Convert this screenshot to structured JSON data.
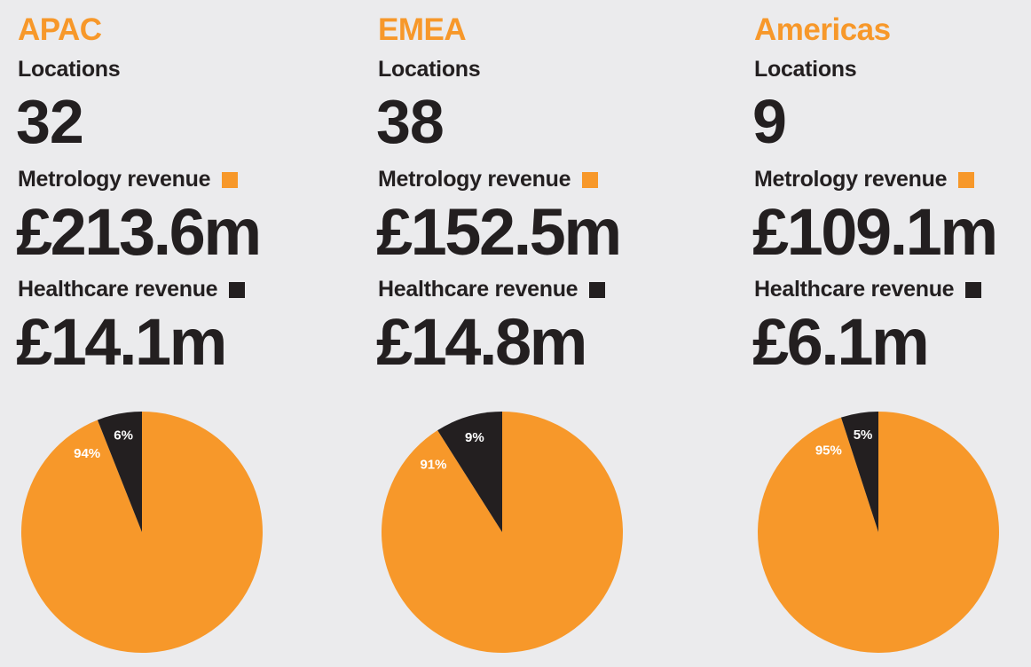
{
  "colors": {
    "metrology": "#f7982a",
    "healthcare": "#231f20",
    "background": "#ebebed"
  },
  "labels": {
    "locations": "Locations",
    "metrology_revenue": "Metrology revenue",
    "healthcare_revenue": "Healthcare revenue"
  },
  "regions": [
    {
      "name": "APAC",
      "locations": "32",
      "metrology_revenue": "£213.6m",
      "healthcare_revenue": "£14.1m"
    },
    {
      "name": "EMEA",
      "locations": "38",
      "metrology_revenue": "£152.5m",
      "healthcare_revenue": "£14.8m"
    },
    {
      "name": "Americas",
      "locations": "9",
      "metrology_revenue": "£109.1m",
      "healthcare_revenue": "£6.1m"
    }
  ],
  "chart_data": [
    {
      "type": "pie",
      "categories": [
        "Metrology revenue",
        "Healthcare revenue"
      ],
      "values": [
        94,
        6
      ],
      "labels": [
        "94%",
        "6%"
      ],
      "colors": [
        "#f7982a",
        "#231f20"
      ]
    },
    {
      "type": "pie",
      "categories": [
        "Metrology revenue",
        "Healthcare revenue"
      ],
      "values": [
        91,
        9
      ],
      "labels": [
        "91%",
        "9%"
      ],
      "colors": [
        "#f7982a",
        "#231f20"
      ]
    },
    {
      "type": "pie",
      "categories": [
        "Metrology revenue",
        "Healthcare revenue"
      ],
      "values": [
        95,
        5
      ],
      "labels": [
        "95%",
        "5%"
      ],
      "colors": [
        "#f7982a",
        "#231f20"
      ]
    }
  ]
}
